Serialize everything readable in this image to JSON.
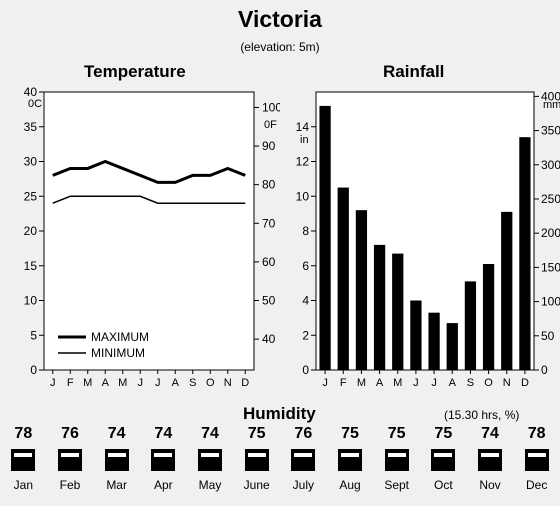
{
  "title": "Victoria",
  "subtitle": "(elevation: 5m)",
  "chart_data": [
    {
      "type": "line",
      "title": "Temperature",
      "x": [
        "J",
        "F",
        "M",
        "A",
        "M",
        "J",
        "J",
        "A",
        "S",
        "O",
        "N",
        "D"
      ],
      "series": [
        {
          "name": "MAXIMUM",
          "values": [
            28,
            29,
            29,
            30,
            29,
            28,
            27,
            27,
            28,
            28,
            29,
            28
          ]
        },
        {
          "name": "MINIMUM",
          "values": [
            24,
            25,
            25,
            25,
            25,
            25,
            24,
            24,
            24,
            24,
            24,
            24
          ]
        }
      ],
      "y_left": {
        "unit": "0C",
        "ylim": [
          0,
          40
        ],
        "ticks": [
          0,
          5,
          10,
          15,
          20,
          25,
          30,
          35,
          40
        ]
      },
      "y_right": {
        "unit": "0F",
        "ticks": [
          40,
          50,
          60,
          70,
          80,
          90,
          100
        ]
      },
      "legend": "bottom-left",
      "grid": false
    },
    {
      "type": "bar",
      "title": "Rainfall",
      "categories": [
        "J",
        "F",
        "M",
        "A",
        "M",
        "J",
        "J",
        "A",
        "S",
        "O",
        "N",
        "D"
      ],
      "values": [
        15.2,
        10.5,
        9.2,
        7.2,
        6.7,
        4.0,
        3.3,
        2.7,
        5.1,
        6.1,
        9.1,
        13.4
      ],
      "y_left": {
        "unit": "in",
        "ylim": [
          0,
          16
        ],
        "ticks": [
          0,
          2,
          4,
          6,
          8,
          10,
          12,
          14
        ]
      },
      "y_right": {
        "unit": "mm",
        "ticks": [
          0,
          50,
          100,
          150,
          200,
          250,
          300,
          350,
          400
        ]
      },
      "grid": false
    },
    {
      "type": "table",
      "title": "Humidity",
      "note": "(15.30 hrs, %)",
      "months": [
        "Jan",
        "Feb",
        "Mar",
        "Apr",
        "May",
        "June",
        "July",
        "Aug",
        "Sept",
        "Oct",
        "Nov",
        "Dec"
      ],
      "values": [
        78,
        76,
        74,
        74,
        74,
        75,
        76,
        75,
        75,
        75,
        74,
        78
      ]
    }
  ]
}
